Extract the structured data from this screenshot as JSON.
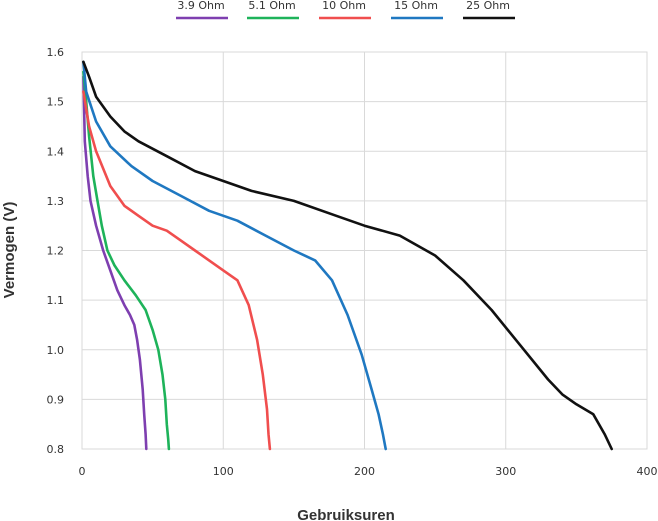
{
  "chart_data": {
    "type": "line",
    "title": "",
    "xlabel": "Gebruiksuren",
    "ylabel": "Vermogen (V)",
    "xlim": [
      0,
      400
    ],
    "ylim": [
      0.8,
      1.6
    ],
    "xticks": [
      "0",
      "100",
      "200",
      "300",
      "400"
    ],
    "yticks": [
      "0.8",
      "0.9",
      "1.0",
      "1.1",
      "1.2",
      "1.3",
      "1.4",
      "1.5",
      "1.6"
    ],
    "grid": true,
    "legend_position": "top",
    "series": [
      {
        "name": "3.9 Ohm",
        "color": "#7e3fb0",
        "points": [
          [
            1,
            1.55
          ],
          [
            2,
            1.42
          ],
          [
            4,
            1.35
          ],
          [
            6,
            1.3
          ],
          [
            10,
            1.25
          ],
          [
            15,
            1.2
          ],
          [
            20,
            1.16
          ],
          [
            25,
            1.12
          ],
          [
            30,
            1.09
          ],
          [
            34,
            1.07
          ],
          [
            37,
            1.05
          ],
          [
            39,
            1.02
          ],
          [
            41,
            0.98
          ],
          [
            43,
            0.92
          ],
          [
            44,
            0.87
          ],
          [
            45,
            0.83
          ],
          [
            45.5,
            0.8
          ]
        ]
      },
      {
        "name": "5.1 Ohm",
        "color": "#1eb35a",
        "points": [
          [
            1,
            1.56
          ],
          [
            3,
            1.5
          ],
          [
            5,
            1.43
          ],
          [
            8,
            1.35
          ],
          [
            11,
            1.3
          ],
          [
            14,
            1.25
          ],
          [
            18,
            1.2
          ],
          [
            23,
            1.17
          ],
          [
            30,
            1.14
          ],
          [
            38,
            1.11
          ],
          [
            45,
            1.08
          ],
          [
            50,
            1.04
          ],
          [
            54,
            1.0
          ],
          [
            57,
            0.95
          ],
          [
            59,
            0.9
          ],
          [
            60,
            0.85
          ],
          [
            61,
            0.82
          ],
          [
            61.5,
            0.8
          ]
        ]
      },
      {
        "name": "10 Ohm",
        "color": "#f04e4e",
        "points": [
          [
            1,
            1.52
          ],
          [
            5,
            1.45
          ],
          [
            10,
            1.4
          ],
          [
            20,
            1.33
          ],
          [
            30,
            1.29
          ],
          [
            40,
            1.27
          ],
          [
            50,
            1.25
          ],
          [
            60,
            1.24
          ],
          [
            70,
            1.22
          ],
          [
            80,
            1.2
          ],
          [
            90,
            1.18
          ],
          [
            100,
            1.16
          ],
          [
            110,
            1.14
          ],
          [
            118,
            1.09
          ],
          [
            124,
            1.02
          ],
          [
            128,
            0.95
          ],
          [
            131,
            0.88
          ],
          [
            132,
            0.83
          ],
          [
            133,
            0.8
          ]
        ]
      },
      {
        "name": "15 Ohm",
        "color": "#1f78c1",
        "points": [
          [
            1,
            1.58
          ],
          [
            3,
            1.52
          ],
          [
            10,
            1.46
          ],
          [
            20,
            1.41
          ],
          [
            35,
            1.37
          ],
          [
            50,
            1.34
          ],
          [
            70,
            1.31
          ],
          [
            90,
            1.28
          ],
          [
            110,
            1.26
          ],
          [
            130,
            1.23
          ],
          [
            150,
            1.2
          ],
          [
            165,
            1.18
          ],
          [
            177,
            1.14
          ],
          [
            188,
            1.07
          ],
          [
            198,
            0.99
          ],
          [
            205,
            0.92
          ],
          [
            210,
            0.87
          ],
          [
            213,
            0.83
          ],
          [
            215,
            0.8
          ]
        ]
      },
      {
        "name": "25 Ohm",
        "color": "#111111",
        "points": [
          [
            1,
            1.58
          ],
          [
            5,
            1.55
          ],
          [
            10,
            1.51
          ],
          [
            20,
            1.47
          ],
          [
            30,
            1.44
          ],
          [
            40,
            1.42
          ],
          [
            60,
            1.39
          ],
          [
            80,
            1.36
          ],
          [
            100,
            1.34
          ],
          [
            120,
            1.32
          ],
          [
            150,
            1.3
          ],
          [
            180,
            1.27
          ],
          [
            200,
            1.25
          ],
          [
            225,
            1.23
          ],
          [
            250,
            1.19
          ],
          [
            270,
            1.14
          ],
          [
            290,
            1.08
          ],
          [
            310,
            1.01
          ],
          [
            330,
            0.94
          ],
          [
            340,
            0.91
          ],
          [
            350,
            0.89
          ],
          [
            362,
            0.87
          ],
          [
            370,
            0.83
          ],
          [
            375,
            0.8
          ]
        ]
      }
    ]
  }
}
